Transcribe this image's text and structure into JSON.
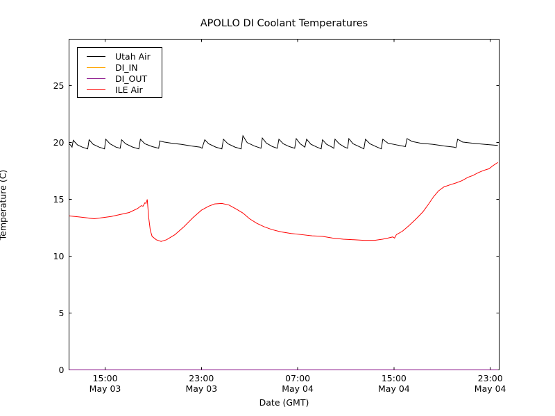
{
  "title": "APOLLO DI Coolant Temperatures",
  "chart_data": {
    "type": "line",
    "title": "APOLLO DI Coolant Temperatures",
    "xlabel": "Date (GMT)",
    "ylabel": "Temperature (C)",
    "grid": false,
    "legend_position": "upper left",
    "ylim": [
      0,
      29.1
    ],
    "xlim_hours": [
      0,
      35.74
    ],
    "x_hours_origin": "May 03 12:00",
    "y_ticks": [
      0,
      5,
      10,
      15,
      20,
      25
    ],
    "x_ticks": [
      {
        "h": 3,
        "time": "15:00",
        "date": "May 03"
      },
      {
        "h": 11,
        "time": "23:00",
        "date": "May 03"
      },
      {
        "h": 19,
        "time": "07:00",
        "date": "May 04"
      },
      {
        "h": 27,
        "time": "15:00",
        "date": "May 04"
      },
      {
        "h": 35,
        "time": "23:00",
        "date": "May 04"
      }
    ],
    "series": [
      {
        "name": "Utah Air",
        "color": "#000000",
        "points": [
          [
            0,
            19.9
          ],
          [
            0.15,
            19.75
          ],
          [
            0.25,
            19.6
          ],
          [
            0.35,
            20.2
          ],
          [
            0.7,
            19.8
          ],
          [
            1.1,
            19.6
          ],
          [
            1.55,
            19.45
          ],
          [
            1.67,
            20.25
          ],
          [
            2.0,
            19.85
          ],
          [
            2.5,
            19.6
          ],
          [
            2.95,
            19.45
          ],
          [
            3.05,
            20.3
          ],
          [
            3.4,
            19.9
          ],
          [
            3.9,
            19.6
          ],
          [
            4.25,
            19.5
          ],
          [
            4.37,
            20.25
          ],
          [
            4.7,
            19.9
          ],
          [
            5.3,
            19.6
          ],
          [
            5.8,
            19.45
          ],
          [
            5.93,
            20.3
          ],
          [
            6.3,
            19.9
          ],
          [
            6.9,
            19.65
          ],
          [
            7.45,
            19.5
          ],
          [
            7.54,
            20.15
          ],
          [
            7.9,
            20.05
          ],
          [
            8.5,
            19.95
          ],
          [
            9.3,
            19.85
          ],
          [
            10.2,
            19.7
          ],
          [
            10.9,
            19.6
          ],
          [
            11.05,
            19.5
          ],
          [
            11.28,
            20.25
          ],
          [
            11.6,
            19.9
          ],
          [
            12.2,
            19.6
          ],
          [
            12.7,
            19.45
          ],
          [
            12.83,
            20.3
          ],
          [
            13.2,
            19.9
          ],
          [
            13.8,
            19.6
          ],
          [
            14.3,
            19.45
          ],
          [
            14.45,
            20.6
          ],
          [
            14.8,
            20.0
          ],
          [
            15.4,
            19.7
          ],
          [
            15.95,
            19.5
          ],
          [
            16.06,
            20.4
          ],
          [
            16.4,
            19.95
          ],
          [
            16.9,
            19.65
          ],
          [
            17.3,
            19.5
          ],
          [
            17.44,
            20.3
          ],
          [
            17.8,
            19.9
          ],
          [
            18.3,
            19.65
          ],
          [
            18.75,
            19.5
          ],
          [
            18.88,
            20.35
          ],
          [
            19.2,
            19.9
          ],
          [
            19.6,
            19.6
          ],
          [
            19.74,
            20.3
          ],
          [
            20.1,
            19.85
          ],
          [
            20.6,
            19.6
          ],
          [
            20.95,
            19.45
          ],
          [
            21.06,
            20.25
          ],
          [
            21.4,
            19.85
          ],
          [
            21.85,
            19.6
          ],
          [
            22.0,
            19.5
          ],
          [
            22.1,
            20.3
          ],
          [
            22.45,
            19.9
          ],
          [
            22.9,
            19.6
          ],
          [
            23.15,
            19.5
          ],
          [
            23.25,
            20.35
          ],
          [
            23.6,
            19.9
          ],
          [
            24.2,
            19.6
          ],
          [
            24.5,
            19.45
          ],
          [
            24.63,
            20.3
          ],
          [
            25.0,
            19.9
          ],
          [
            25.6,
            19.6
          ],
          [
            25.95,
            19.45
          ],
          [
            26.07,
            20.3
          ],
          [
            26.5,
            19.95
          ],
          [
            27.2,
            19.8
          ],
          [
            27.95,
            19.65
          ],
          [
            28.09,
            20.35
          ],
          [
            28.5,
            20.1
          ],
          [
            29.2,
            19.95
          ],
          [
            30.2,
            19.85
          ],
          [
            31.2,
            19.7
          ],
          [
            32.0,
            19.6
          ],
          [
            32.15,
            19.55
          ],
          [
            32.29,
            20.3
          ],
          [
            32.7,
            20.05
          ],
          [
            33.5,
            19.95
          ],
          [
            34.5,
            19.85
          ],
          [
            35.63,
            19.75
          ]
        ]
      },
      {
        "name": "DI_IN",
        "color": "#ffa500",
        "points": [
          [
            0,
            0
          ],
          [
            35.63,
            0
          ]
        ]
      },
      {
        "name": "DI_OUT",
        "color": "#800080",
        "points": [
          [
            0,
            0
          ],
          [
            35.63,
            0
          ]
        ]
      },
      {
        "name": "ILE Air",
        "color": "#ff0000",
        "points": [
          [
            0,
            13.55
          ],
          [
            0.9,
            13.45
          ],
          [
            2.1,
            13.3
          ],
          [
            3.5,
            13.5
          ],
          [
            5.0,
            13.85
          ],
          [
            5.7,
            14.2
          ],
          [
            6.0,
            14.45
          ],
          [
            6.15,
            14.4
          ],
          [
            6.3,
            14.7
          ],
          [
            6.4,
            14.65
          ],
          [
            6.5,
            15.0
          ],
          [
            6.62,
            13.4
          ],
          [
            6.75,
            12.3
          ],
          [
            6.9,
            11.75
          ],
          [
            7.25,
            11.45
          ],
          [
            7.65,
            11.3
          ],
          [
            8.1,
            11.45
          ],
          [
            8.8,
            11.9
          ],
          [
            9.55,
            12.6
          ],
          [
            10.3,
            13.4
          ],
          [
            11.0,
            14.05
          ],
          [
            11.6,
            14.4
          ],
          [
            12.1,
            14.6
          ],
          [
            12.7,
            14.65
          ],
          [
            13.3,
            14.5
          ],
          [
            13.9,
            14.15
          ],
          [
            14.45,
            13.8
          ],
          [
            15.0,
            13.3
          ],
          [
            15.6,
            12.9
          ],
          [
            16.2,
            12.6
          ],
          [
            16.85,
            12.35
          ],
          [
            17.6,
            12.15
          ],
          [
            18.45,
            12.0
          ],
          [
            19.35,
            11.9
          ],
          [
            20.2,
            11.8
          ],
          [
            21.05,
            11.75
          ],
          [
            21.9,
            11.6
          ],
          [
            22.8,
            11.5
          ],
          [
            23.65,
            11.45
          ],
          [
            24.5,
            11.4
          ],
          [
            25.4,
            11.4
          ],
          [
            26.05,
            11.5
          ],
          [
            26.5,
            11.6
          ],
          [
            26.9,
            11.7
          ],
          [
            27.05,
            11.6
          ],
          [
            27.2,
            11.9
          ],
          [
            27.7,
            12.2
          ],
          [
            28.25,
            12.7
          ],
          [
            28.85,
            13.3
          ],
          [
            29.4,
            13.9
          ],
          [
            29.85,
            14.55
          ],
          [
            30.3,
            15.25
          ],
          [
            30.7,
            15.75
          ],
          [
            31.15,
            16.1
          ],
          [
            31.7,
            16.3
          ],
          [
            32.15,
            16.45
          ],
          [
            32.65,
            16.65
          ],
          [
            33.15,
            16.95
          ],
          [
            33.55,
            17.1
          ],
          [
            34.0,
            17.35
          ],
          [
            34.45,
            17.55
          ],
          [
            34.9,
            17.7
          ],
          [
            35.2,
            17.95
          ],
          [
            35.63,
            18.25
          ]
        ]
      }
    ]
  }
}
